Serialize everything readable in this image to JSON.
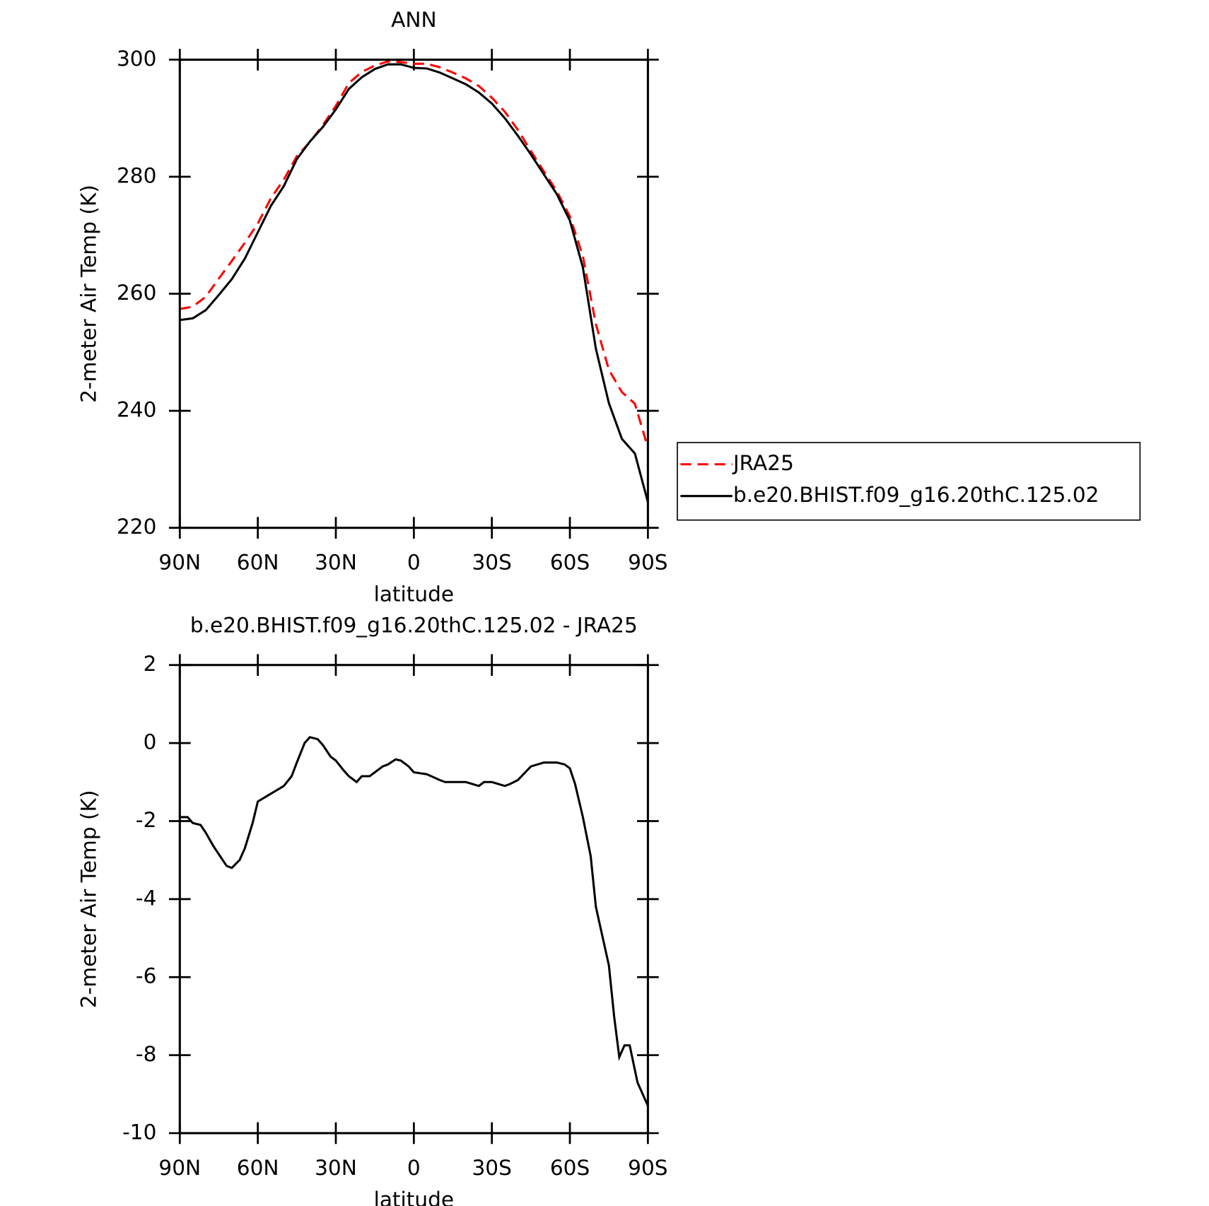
{
  "chart_data": [
    {
      "type": "line",
      "title": "ANN",
      "xlabel": "latitude",
      "ylabel": "2-meter Air Temp (K)",
      "x": [
        90,
        85,
        80,
        75,
        70,
        65,
        60,
        55,
        50,
        45,
        40,
        35,
        30,
        25,
        20,
        15,
        10,
        5,
        0,
        -5,
        -10,
        -15,
        -20,
        -25,
        -30,
        -35,
        -40,
        -45,
        -50,
        -55,
        -60,
        -65,
        -70,
        -75,
        -80,
        -85,
        -90
      ],
      "series": [
        {
          "name": "JRA25",
          "color": "#ff0000",
          "line_style": "dashed",
          "values": [
            257.4,
            257.8,
            259.5,
            262.6,
            265.6,
            268.7,
            272,
            276.3,
            279.5,
            283.5,
            285.9,
            288.8,
            292.1,
            296,
            297.9,
            299,
            299.7,
            299.6,
            299.3,
            299.3,
            298.7,
            297.8,
            296.8,
            295.5,
            293.5,
            291.1,
            288,
            284.4,
            280.9,
            277.5,
            273.2,
            266.4,
            254.8,
            247,
            243.2,
            241.2,
            233.7
          ]
        },
        {
          "name": "b.e20.BHIST.f09_g16.20thC.125.02",
          "color": "#000000",
          "line_style": "solid",
          "values": [
            255.5,
            255.8,
            257.2,
            259.8,
            262.5,
            266,
            270.5,
            275,
            278.4,
            283,
            286,
            288.5,
            291.5,
            295,
            297,
            298.4,
            299.2,
            299.2,
            298.6,
            298.5,
            297.8,
            296.8,
            295.8,
            294.4,
            292.5,
            290,
            287,
            283.8,
            280.4,
            277,
            272.5,
            264.5,
            250.6,
            241.3,
            235.2,
            232.7,
            224.4
          ]
        }
      ],
      "xlim": [
        90,
        -90
      ],
      "xticks": [
        {
          "value": 90,
          "label": "90N"
        },
        {
          "value": 60,
          "label": "60N"
        },
        {
          "value": 30,
          "label": "30N"
        },
        0,
        {
          "value": -30,
          "label": "30S"
        },
        {
          "value": -60,
          "label": "60S"
        },
        {
          "value": -90,
          "label": "90S"
        }
      ],
      "ylim": [
        220,
        300
      ],
      "yticks": [
        220,
        240,
        260,
        280,
        300
      ],
      "legend": "right"
    },
    {
      "type": "line",
      "title": "b.e20.BHIST.f09_g16.20thC.125.02 - JRA25",
      "xlabel": "latitude",
      "ylabel": "2-meter Air Temp (K)",
      "x": [
        90,
        87,
        85,
        82,
        80,
        77,
        75,
        72,
        70,
        67,
        65,
        62,
        60,
        55,
        50,
        47,
        45,
        42,
        40,
        37,
        35,
        32,
        30,
        27,
        25,
        22,
        20,
        17,
        15,
        12,
        10,
        7,
        5,
        2,
        0,
        -5,
        -10,
        -12,
        -15,
        -20,
        -25,
        -27,
        -30,
        -35,
        -37,
        -40,
        -45,
        -50,
        -55,
        -58,
        -60,
        -62,
        -65,
        -68,
        -70,
        -73,
        -75,
        -77,
        -79,
        -81,
        -83,
        -86,
        -90
      ],
      "series": [
        {
          "name": "b.e20.BHIST.f09_g16.20thC.125.02 - JRA25",
          "color": "#000000",
          "line_style": "solid",
          "values": [
            -1.9,
            -1.9,
            -2.05,
            -2.1,
            -2.3,
            -2.65,
            -2.85,
            -3.15,
            -3.2,
            -3.0,
            -2.7,
            -2.05,
            -1.5,
            -1.3,
            -1.1,
            -0.85,
            -0.5,
            0.0,
            0.15,
            0.1,
            -0.05,
            -0.35,
            -0.45,
            -0.7,
            -0.85,
            -1.0,
            -0.85,
            -0.85,
            -0.75,
            -0.6,
            -0.55,
            -0.42,
            -0.45,
            -0.6,
            -0.75,
            -0.8,
            -0.95,
            -1.0,
            -1.0,
            -1.0,
            -1.1,
            -1.0,
            -1.0,
            -1.1,
            -1.05,
            -0.95,
            -0.6,
            -0.5,
            -0.5,
            -0.55,
            -0.65,
            -1.05,
            -1.9,
            -2.9,
            -4.2,
            -5.1,
            -5.7,
            -7.0,
            -8.05,
            -7.75,
            -7.75,
            -8.7,
            -9.3
          ]
        }
      ],
      "xlim": [
        90,
        -90
      ],
      "xticks": [
        {
          "value": 90,
          "label": "90N"
        },
        {
          "value": 60,
          "label": "60N"
        },
        {
          "value": 30,
          "label": "30N"
        },
        0,
        {
          "value": -30,
          "label": "30S"
        },
        {
          "value": -60,
          "label": "60S"
        },
        {
          "value": -90,
          "label": "90S"
        }
      ],
      "ylim": [
        -10,
        2
      ],
      "yticks": [
        -10,
        -8,
        -6,
        -4,
        -2,
        0,
        2
      ]
    }
  ]
}
